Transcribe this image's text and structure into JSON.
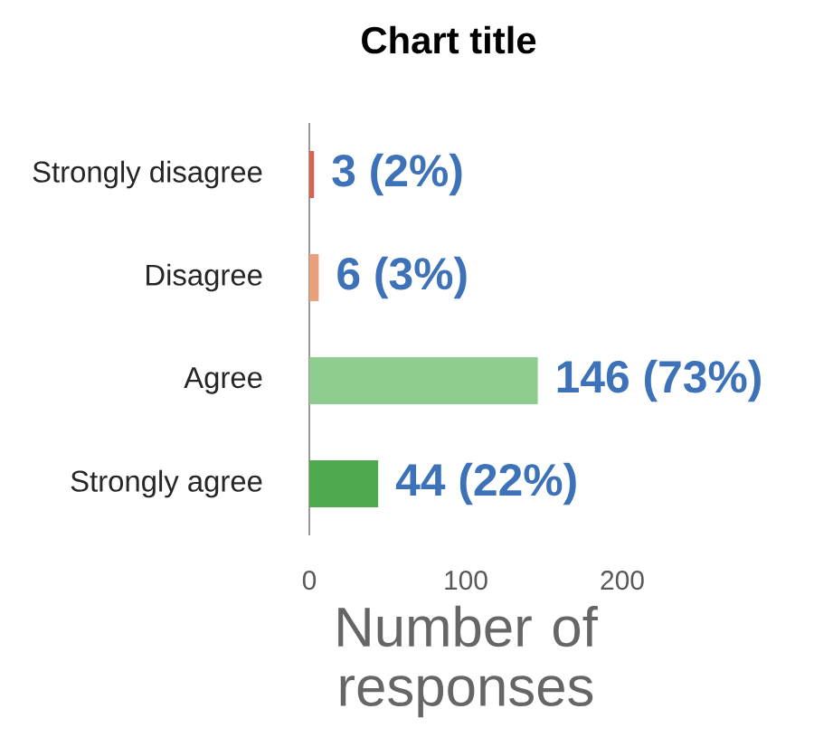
{
  "chart_data": {
    "type": "bar",
    "orientation": "horizontal",
    "title": "Chart title",
    "xlabel": "Number of responses",
    "categories": [
      "Strongly disagree",
      "Disagree",
      "Agree",
      "Strongly agree"
    ],
    "values": [
      3,
      6,
      146,
      44
    ],
    "colors": [
      "#d9634f",
      "#e8a07a",
      "#8fcc8f",
      "#4fa94f"
    ],
    "value_labels": [
      "3 (2%)",
      "6 (3%)",
      "146 (73%)",
      "44 (22%)"
    ],
    "xlim": [
      0,
      200
    ],
    "xticks": [
      0,
      100,
      200
    ],
    "grid": false
  }
}
